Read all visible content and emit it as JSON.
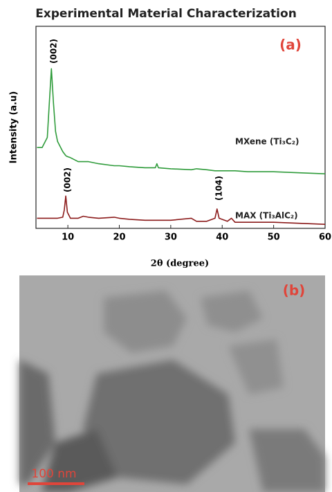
{
  "chart_data": {
    "type": "line",
    "title": "Experimental Material Characterization",
    "x_label": "2θ (degree)",
    "y_label": "Intensity (a.u)",
    "panel_label": "(a)",
    "annotations": [
      "(002)",
      "(002)",
      "(104)"
    ],
    "x": [
      4,
      5,
      6,
      6.4,
      6.8,
      7.2,
      7.6,
      8,
      9,
      9.3,
      9.6,
      9.9,
      10.5,
      12,
      13,
      14,
      16,
      19,
      20,
      22,
      25,
      27,
      27.3,
      27.6,
      30,
      34,
      35,
      37,
      38.6,
      39,
      39.4,
      41,
      41.8,
      42.5,
      45,
      50,
      55,
      60
    ],
    "series": [
      {
        "name": "MXene (Ti₃C₂)",
        "color": "#2e9b3a",
        "values": [
          40,
          40,
          45,
          62,
          79,
          62,
          48,
          43,
          38,
          37,
          36,
          35.5,
          35,
          33,
          33,
          33,
          32,
          31,
          31,
          30.5,
          30,
          30,
          32,
          30,
          29.5,
          29,
          29.5,
          29,
          28.5,
          28.5,
          28.5,
          28.5,
          28.5,
          28.5,
          28,
          28,
          27.5,
          27
        ]
      },
      {
        "name": "MAX (Ti₃AlC₂)",
        "color": "#8b1a1a",
        "values": [
          5,
          5,
          5,
          5,
          5,
          5,
          5,
          5,
          5.5,
          9,
          16,
          8,
          5,
          5,
          6,
          5.5,
          5,
          5.5,
          5,
          4.5,
          4,
          4,
          4,
          4,
          4,
          5,
          3.5,
          3.5,
          5,
          9.6,
          5,
          3.5,
          5,
          3,
          3,
          3,
          2.5,
          2
        ]
      }
    ],
    "xlim": [
      3.8,
      60
    ],
    "xticks": [
      10,
      20,
      30,
      40,
      50,
      60
    ],
    "ylim": [
      0,
      100
    ]
  },
  "image": {
    "panel_label": "(b)",
    "scale_bar": "100 nm"
  }
}
